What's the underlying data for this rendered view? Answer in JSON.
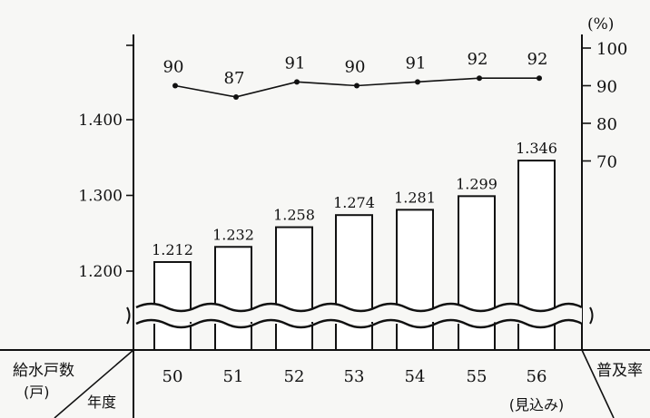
{
  "chart_data": {
    "type": "bar",
    "categories": [
      "50",
      "51",
      "52",
      "53",
      "54",
      "55",
      "56"
    ],
    "category_notes": [
      "",
      "",
      "",
      "",
      "",
      "",
      "(見込み)"
    ],
    "series": [
      {
        "values": [
          1212,
          1232,
          1258,
          1274,
          1281,
          1299,
          1346
        ],
        "labels": [
          "1.212",
          "1.232",
          "1.258",
          "1.274",
          "1.281",
          "1.299",
          "1.346"
        ]
      },
      {
        "values": [
          90,
          87,
          91,
          90,
          91,
          92,
          92
        ]
      }
    ],
    "left_axis": {
      "ticks": [
        "1.200",
        "1.300",
        "1.400"
      ],
      "tick_values": [
        1200,
        1300,
        1400
      ],
      "label_top": "給水戸数",
      "label_bottom": "(戸)"
    },
    "right_axis": {
      "ticks": [
        "70",
        "80",
        "90",
        "100"
      ],
      "tick_values": [
        70,
        80,
        90,
        100
      ],
      "unit": "(%)",
      "label": "普及率"
    },
    "corner_label": "年度",
    "axis_break": true
  }
}
